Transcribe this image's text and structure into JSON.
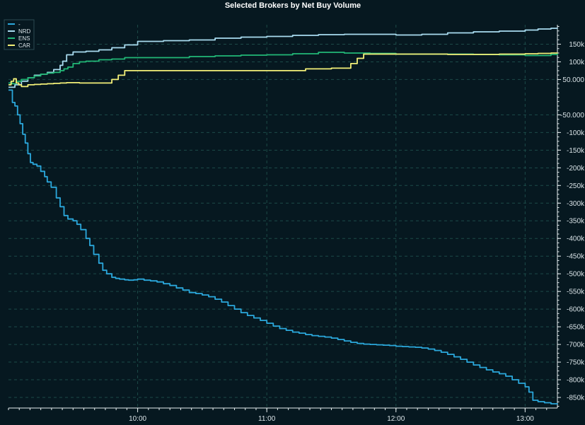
{
  "chart_data": {
    "type": "line",
    "title": "Selected Brokers by Net Buy Volume",
    "xlabel": "",
    "ylabel": "",
    "x_range_hours": [
      9.0,
      13.25
    ],
    "ylim": [
      -880000,
      205000
    ],
    "x_ticks": [
      {
        "t": 10.0,
        "label": "10:00"
      },
      {
        "t": 11.0,
        "label": "11:00"
      },
      {
        "t": 12.0,
        "label": "12:00"
      },
      {
        "t": 13.0,
        "label": "13:00"
      }
    ],
    "y_ticks": [
      {
        "v": 150000,
        "label": "150k"
      },
      {
        "v": 100000,
        "label": "100k"
      },
      {
        "v": 50000,
        "label": "50.000"
      },
      {
        "v": -50000,
        "label": "-50.000"
      },
      {
        "v": -100000,
        "label": "-100k"
      },
      {
        "v": -150000,
        "label": "-150k"
      },
      {
        "v": -200000,
        "label": "-200k"
      },
      {
        "v": -250000,
        "label": "-250k"
      },
      {
        "v": -300000,
        "label": "-300k"
      },
      {
        "v": -350000,
        "label": "-350k"
      },
      {
        "v": -400000,
        "label": "-400k"
      },
      {
        "v": -450000,
        "label": "-450k"
      },
      {
        "v": -500000,
        "label": "-500k"
      },
      {
        "v": -550000,
        "label": "-550k"
      },
      {
        "v": -600000,
        "label": "-600k"
      },
      {
        "v": -650000,
        "label": "-650k"
      },
      {
        "v": -700000,
        "label": "-700k"
      },
      {
        "v": -750000,
        "label": "-750k"
      },
      {
        "v": -800000,
        "label": "-800k"
      },
      {
        "v": -850000,
        "label": "-850k"
      }
    ],
    "grid": true,
    "legend_position": "top-left",
    "series": [
      {
        "name": "-",
        "color": "#2ba8dc",
        "x": [
          9.0,
          9.03,
          9.05,
          9.07,
          9.09,
          9.11,
          9.13,
          9.15,
          9.17,
          9.19,
          9.22,
          9.25,
          9.28,
          9.3,
          9.33,
          9.37,
          9.4,
          9.43,
          9.46,
          9.5,
          9.53,
          9.56,
          9.6,
          9.63,
          9.66,
          9.7,
          9.73,
          9.76,
          9.8,
          9.83,
          9.86,
          9.9,
          9.93,
          9.97,
          10.0,
          10.05,
          10.1,
          10.15,
          10.2,
          10.25,
          10.3,
          10.35,
          10.4,
          10.45,
          10.5,
          10.55,
          10.6,
          10.65,
          10.7,
          10.75,
          10.8,
          10.85,
          10.9,
          10.95,
          11.0,
          11.05,
          11.1,
          11.15,
          11.2,
          11.25,
          11.3,
          11.35,
          11.4,
          11.45,
          11.5,
          11.55,
          11.6,
          11.65,
          11.7,
          11.75,
          11.8,
          11.85,
          11.9,
          11.95,
          12.0,
          12.05,
          12.1,
          12.15,
          12.2,
          12.25,
          12.3,
          12.35,
          12.4,
          12.45,
          12.5,
          12.55,
          12.6,
          12.65,
          12.7,
          12.75,
          12.8,
          12.85,
          12.9,
          12.95,
          13.0,
          13.03,
          13.06,
          13.1,
          13.15,
          13.2,
          13.25
        ],
        "y": [
          20000,
          -15000,
          -25000,
          -50000,
          -75000,
          -105000,
          -130000,
          -160000,
          -185000,
          -190000,
          -195000,
          -210000,
          -225000,
          -240000,
          -255000,
          -285000,
          -310000,
          -335000,
          -345000,
          -350000,
          -360000,
          -375000,
          -400000,
          -420000,
          -445000,
          -470000,
          -490000,
          -500000,
          -510000,
          -513000,
          -515000,
          -517000,
          -518000,
          -517000,
          -515000,
          -518000,
          -520000,
          -523000,
          -528000,
          -533000,
          -540000,
          -546000,
          -553000,
          -556000,
          -560000,
          -565000,
          -572000,
          -580000,
          -590000,
          -600000,
          -610000,
          -618000,
          -625000,
          -632000,
          -640000,
          -648000,
          -655000,
          -660000,
          -665000,
          -668000,
          -672000,
          -675000,
          -677000,
          -679000,
          -682000,
          -686000,
          -690000,
          -694000,
          -697000,
          -699000,
          -700000,
          -701000,
          -702000,
          -703000,
          -705000,
          -706000,
          -707000,
          -708000,
          -710000,
          -713000,
          -717000,
          -722000,
          -728000,
          -735000,
          -742000,
          -750000,
          -758000,
          -765000,
          -772000,
          -778000,
          -783000,
          -790000,
          -800000,
          -810000,
          -820000,
          -835000,
          -858000,
          -862000,
          -865000,
          -868000,
          -870000
        ]
      },
      {
        "name": "NRD",
        "color": "#a9dbef",
        "x": [
          9.0,
          9.05,
          9.1,
          9.15,
          9.2,
          9.25,
          9.3,
          9.35,
          9.4,
          9.42,
          9.45,
          9.5,
          9.6,
          9.7,
          9.8,
          9.9,
          10.0,
          10.2,
          10.4,
          10.6,
          10.8,
          11.0,
          11.2,
          11.4,
          11.6,
          11.8,
          12.0,
          12.2,
          12.4,
          12.6,
          12.8,
          13.0,
          13.1,
          13.2,
          13.25
        ],
        "y": [
          28000,
          35000,
          45000,
          55000,
          62000,
          65000,
          70000,
          78000,
          90000,
          102000,
          120000,
          128000,
          130000,
          134000,
          140000,
          148000,
          158000,
          160000,
          162000,
          167000,
          170000,
          172000,
          175000,
          177000,
          178000,
          178000,
          176000,
          178000,
          182000,
          185000,
          187000,
          190000,
          193000,
          195000,
          196000
        ]
      },
      {
        "name": "ENS",
        "color": "#22b877",
        "x": [
          9.0,
          9.03,
          9.06,
          9.1,
          9.15,
          9.2,
          9.25,
          9.3,
          9.35,
          9.4,
          9.43,
          9.46,
          9.5,
          9.55,
          9.6,
          9.7,
          9.8,
          9.9,
          10.0,
          10.2,
          10.4,
          10.6,
          10.8,
          11.0,
          11.2,
          11.4,
          11.6,
          11.8,
          12.0,
          12.2,
          12.4,
          12.6,
          12.8,
          13.0,
          13.1,
          13.2,
          13.25
        ],
        "y": [
          40000,
          38000,
          45000,
          50000,
          55000,
          60000,
          65000,
          68000,
          70000,
          75000,
          80000,
          85000,
          95000,
          100000,
          102000,
          106000,
          108000,
          112000,
          112000,
          112000,
          115000,
          117000,
          119000,
          120000,
          123000,
          127000,
          125000,
          124000,
          122000,
          122000,
          122000,
          121000,
          120000,
          118000,
          118000,
          121000,
          125000
        ]
      },
      {
        "name": "CAR",
        "color": "#f3f078",
        "x": [
          9.0,
          9.02,
          9.04,
          9.06,
          9.08,
          9.1,
          9.15,
          9.2,
          9.25,
          9.3,
          9.35,
          9.4,
          9.45,
          9.5,
          9.55,
          9.6,
          9.65,
          9.7,
          9.75,
          9.8,
          9.85,
          9.9,
          9.95,
          10.0,
          10.2,
          10.4,
          10.6,
          10.8,
          11.0,
          11.1,
          11.2,
          11.3,
          11.4,
          11.5,
          11.6,
          11.65,
          11.7,
          11.75,
          11.8,
          12.0,
          12.2,
          12.4,
          12.6,
          12.8,
          13.0,
          13.1,
          13.2,
          13.25
        ],
        "y": [
          35000,
          45000,
          52000,
          40000,
          35000,
          30000,
          35000,
          36000,
          37000,
          38000,
          39000,
          40000,
          41000,
          41000,
          40000,
          40000,
          40000,
          40000,
          40000,
          50000,
          62000,
          75000,
          75000,
          75000,
          75000,
          75000,
          75000,
          75000,
          75000,
          75000,
          75000,
          80000,
          80000,
          82000,
          82000,
          95000,
          110000,
          122000,
          122000,
          122000,
          122000,
          121000,
          121000,
          122000,
          123000,
          124000,
          125000,
          126000
        ]
      }
    ]
  }
}
